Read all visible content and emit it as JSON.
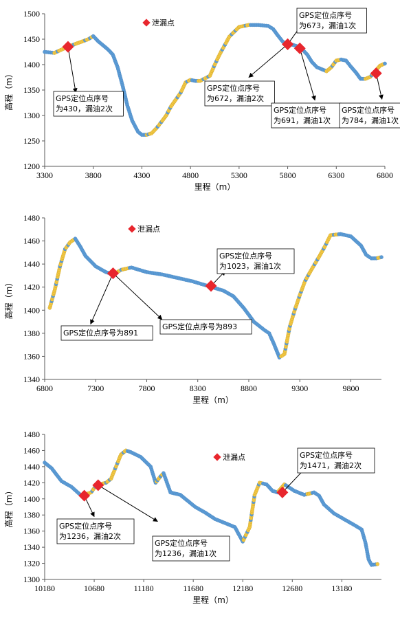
{
  "chart_data": [
    {
      "type": "scatter",
      "xlabel": "里程（m）",
      "ylabel": "高程（m）",
      "xlim": [
        3300,
        6800
      ],
      "ylim": [
        1200,
        1500
      ],
      "xticks": [
        "3300",
        "3800",
        "4300",
        "4800",
        "5300",
        "5800",
        "6300",
        "6800"
      ],
      "yticks": [
        "1200",
        "1250",
        "1300",
        "1350",
        "1400",
        "1450",
        "1500"
      ],
      "legend": {
        "label": "泄漏点",
        "position": "top-center"
      },
      "profile": [
        [
          3300,
          1425
        ],
        [
          3400,
          1423
        ],
        [
          3480,
          1430
        ],
        [
          3550,
          1436
        ],
        [
          3650,
          1443
        ],
        [
          3750,
          1450
        ],
        [
          3800,
          1456
        ],
        [
          3850,
          1446
        ],
        [
          3950,
          1430
        ],
        [
          4000,
          1420
        ],
        [
          4050,
          1395
        ],
        [
          4100,
          1360
        ],
        [
          4150,
          1320
        ],
        [
          4200,
          1290
        ],
        [
          4260,
          1268
        ],
        [
          4300,
          1262
        ],
        [
          4350,
          1262
        ],
        [
          4400,
          1265
        ],
        [
          4450,
          1275
        ],
        [
          4500,
          1287
        ],
        [
          4550,
          1300
        ],
        [
          4600,
          1318
        ],
        [
          4700,
          1345
        ],
        [
          4750,
          1365
        ],
        [
          4800,
          1370
        ],
        [
          4850,
          1368
        ],
        [
          4900,
          1368
        ],
        [
          5000,
          1378
        ],
        [
          5050,
          1400
        ],
        [
          5100,
          1420
        ],
        [
          5200,
          1455
        ],
        [
          5300,
          1474
        ],
        [
          5400,
          1478
        ],
        [
          5500,
          1478
        ],
        [
          5600,
          1476
        ],
        [
          5650,
          1470
        ],
        [
          5700,
          1457
        ],
        [
          5750,
          1445
        ],
        [
          5800,
          1440
        ],
        [
          5850,
          1439
        ],
        [
          5900,
          1436
        ],
        [
          5950,
          1430
        ],
        [
          6000,
          1420
        ],
        [
          6050,
          1405
        ],
        [
          6100,
          1395
        ],
        [
          6200,
          1387
        ],
        [
          6250,
          1395
        ],
        [
          6300,
          1408
        ],
        [
          6350,
          1410
        ],
        [
          6400,
          1408
        ],
        [
          6450,
          1396
        ],
        [
          6500,
          1385
        ],
        [
          6550,
          1372
        ],
        [
          6600,
          1372
        ],
        [
          6650,
          1376
        ],
        [
          6700,
          1387
        ],
        [
          6750,
          1398
        ],
        [
          6800,
          1402
        ]
      ],
      "leaks": [
        {
          "x": 3540,
          "y": 1435,
          "label": [
            "GPS定位点序号",
            "为430，漏油2次"
          ],
          "tip": [
            3620,
            1345
          ]
        },
        {
          "x": 5800,
          "y": 1440,
          "label": [
            "GPS定位点序号",
            "为673，漏油1次"
          ],
          "tip": [
            5950,
            1480
          ]
        },
        {
          "x": 5800,
          "y": 1440,
          "label": [
            "GPS定位点序号",
            "为672，漏油2次"
          ],
          "tip": [
            5400,
            1375
          ]
        },
        {
          "x": 5925,
          "y": 1432,
          "label": [
            "GPS定位点序号",
            "为691，漏油1次"
          ],
          "tip": [
            6080,
            1330
          ]
        },
        {
          "x": 6710,
          "y": 1383,
          "label": [
            "GPS定位点序号",
            "为784，漏油1次"
          ],
          "tip": [
            6770,
            1332
          ]
        }
      ]
    },
    {
      "type": "scatter",
      "xlabel": "里程（m）",
      "ylabel": "高程（m）",
      "xlim": [
        6800,
        10100
      ],
      "ylim": [
        1340,
        1480
      ],
      "xticks": [
        "6800",
        "7300",
        "7800",
        "8300",
        "8800",
        "9300",
        "9800"
      ],
      "yticks": [
        "1340",
        "1360",
        "1380",
        "1400",
        "1420",
        "1440",
        "1460",
        "1480"
      ],
      "legend": {
        "label": "泄漏点",
        "position": "top-left"
      },
      "profile": [
        [
          6850,
          1402
        ],
        [
          6900,
          1418
        ],
        [
          6950,
          1438
        ],
        [
          7000,
          1453
        ],
        [
          7050,
          1459
        ],
        [
          7100,
          1462
        ],
        [
          7150,
          1455
        ],
        [
          7200,
          1447
        ],
        [
          7300,
          1438
        ],
        [
          7400,
          1433
        ],
        [
          7470,
          1431
        ],
        [
          7550,
          1435
        ],
        [
          7650,
          1437
        ],
        [
          7800,
          1433
        ],
        [
          7950,
          1431
        ],
        [
          8100,
          1428
        ],
        [
          8250,
          1425
        ],
        [
          8400,
          1421
        ],
        [
          8550,
          1417
        ],
        [
          8650,
          1412
        ],
        [
          8750,
          1402
        ],
        [
          8850,
          1390
        ],
        [
          8950,
          1383
        ],
        [
          9000,
          1380
        ],
        [
          9050,
          1370
        ],
        [
          9100,
          1359
        ],
        [
          9150,
          1362
        ],
        [
          9200,
          1385
        ],
        [
          9250,
          1400
        ],
        [
          9300,
          1413
        ],
        [
          9350,
          1425
        ],
        [
          9400,
          1433
        ],
        [
          9500,
          1448
        ],
        [
          9550,
          1456
        ],
        [
          9600,
          1465
        ],
        [
          9700,
          1466
        ],
        [
          9800,
          1464
        ],
        [
          9900,
          1456
        ],
        [
          9950,
          1448
        ],
        [
          10000,
          1445
        ],
        [
          10050,
          1445
        ],
        [
          10100,
          1446
        ]
      ],
      "leaks": [
        {
          "x": 7470,
          "y": 1432,
          "label": [
            "GPS定位点序号为891"
          ],
          "tip": [
            7250,
            1388
          ]
        },
        {
          "x": 7470,
          "y": 1432,
          "label": [
            "GPS定位点序号为893"
          ],
          "tip": [
            7950,
            1392
          ]
        },
        {
          "x": 8430,
          "y": 1421,
          "label": [
            "GPS定位点序号",
            "为1023，漏油1次"
          ],
          "tip": [
            8570,
            1434
          ]
        }
      ]
    },
    {
      "type": "scatter",
      "xlabel": "里程（m）",
      "ylabel": "高程（m）",
      "xlim": [
        10180,
        13580
      ],
      "ylim": [
        1300,
        1480
      ],
      "xticks": [
        "10180",
        "10680",
        "11180",
        "11680",
        "12180",
        "12680",
        "13180"
      ],
      "yticks": [
        "1300",
        "1320",
        "1340",
        "1360",
        "1380",
        "1400",
        "1420",
        "1440",
        "1460",
        "1480"
      ],
      "legend": {
        "label": "泄漏点",
        "position": "top-right"
      },
      "profile": [
        [
          10180,
          1445
        ],
        [
          10250,
          1438
        ],
        [
          10350,
          1422
        ],
        [
          10450,
          1415
        ],
        [
          10550,
          1404
        ],
        [
          10650,
          1408
        ],
        [
          10700,
          1417
        ],
        [
          10800,
          1420
        ],
        [
          10850,
          1425
        ],
        [
          10900,
          1440
        ],
        [
          10950,
          1455
        ],
        [
          11000,
          1460
        ],
        [
          11050,
          1458
        ],
        [
          11150,
          1452
        ],
        [
          11250,
          1440
        ],
        [
          11300,
          1420
        ],
        [
          11350,
          1428
        ],
        [
          11380,
          1432
        ],
        [
          11450,
          1408
        ],
        [
          11550,
          1405
        ],
        [
          11600,
          1400
        ],
        [
          11700,
          1390
        ],
        [
          11800,
          1383
        ],
        [
          11900,
          1375
        ],
        [
          12000,
          1370
        ],
        [
          12100,
          1365
        ],
        [
          12180,
          1347
        ],
        [
          12250,
          1365
        ],
        [
          12300,
          1405
        ],
        [
          12350,
          1420
        ],
        [
          12420,
          1418
        ],
        [
          12480,
          1410
        ],
        [
          12530,
          1408
        ],
        [
          12600,
          1418
        ],
        [
          12700,
          1410
        ],
        [
          12800,
          1405
        ],
        [
          12900,
          1408
        ],
        [
          12950,
          1404
        ],
        [
          13000,
          1393
        ],
        [
          13100,
          1382
        ],
        [
          13200,
          1375
        ],
        [
          13300,
          1368
        ],
        [
          13380,
          1362
        ],
        [
          13420,
          1345
        ],
        [
          13450,
          1325
        ],
        [
          13480,
          1318
        ],
        [
          13540,
          1319
        ]
      ],
      "leaks": [
        {
          "x": 10580,
          "y": 1404,
          "label": [
            "GPS定位点序号",
            "为1236，漏油2次"
          ],
          "tip": [
            10680,
            1378
          ]
        },
        {
          "x": 10720,
          "y": 1417,
          "label": [
            "GPS定位点序号",
            "为1236，漏油1次"
          ],
          "tip": [
            11320,
            1372
          ]
        },
        {
          "x": 12580,
          "y": 1408,
          "label": [
            "GPS定位点序号",
            "为1471，漏油2次"
          ],
          "tip": [
            12880,
            1447
          ]
        }
      ]
    }
  ]
}
